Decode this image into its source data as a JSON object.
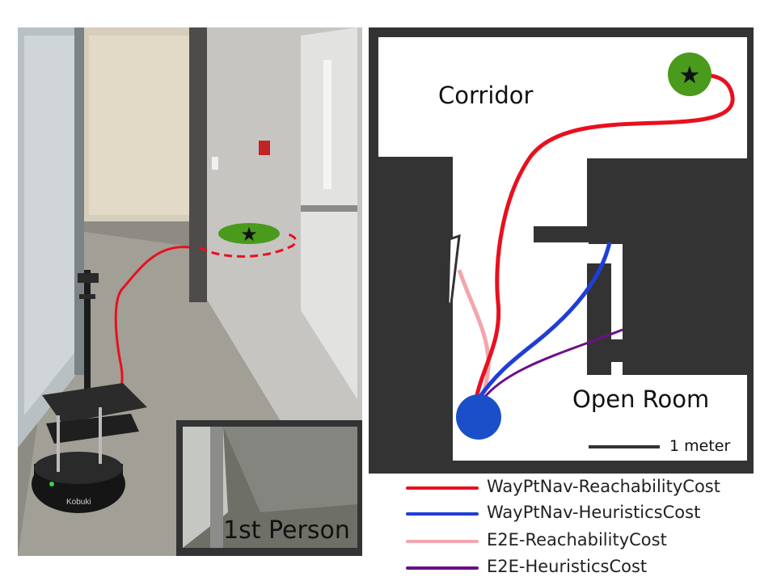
{
  "photo": {
    "inset_label": "1st Person",
    "robot_brand": "Kobuki"
  },
  "map": {
    "label_corridor": "Corridor",
    "label_open_room": "Open Room",
    "scale_bar_label": "1 meter"
  },
  "legend": {
    "items": [
      {
        "label": "WayPtNav-ReachabilityCost",
        "color": "#e8101e"
      },
      {
        "label": "WayPtNav-HeuristicsCost",
        "color": "#1f3ed8"
      },
      {
        "label": "E2E-ReachabilityCost",
        "color": "#f2a6ae"
      },
      {
        "label": "E2E-HeuristicsCost",
        "color": "#6b0f8a"
      }
    ]
  },
  "colors": {
    "wall": "#333333",
    "goal": "#4a9a1c",
    "start": "#1a4fc9",
    "path_red": "#e8101e"
  }
}
